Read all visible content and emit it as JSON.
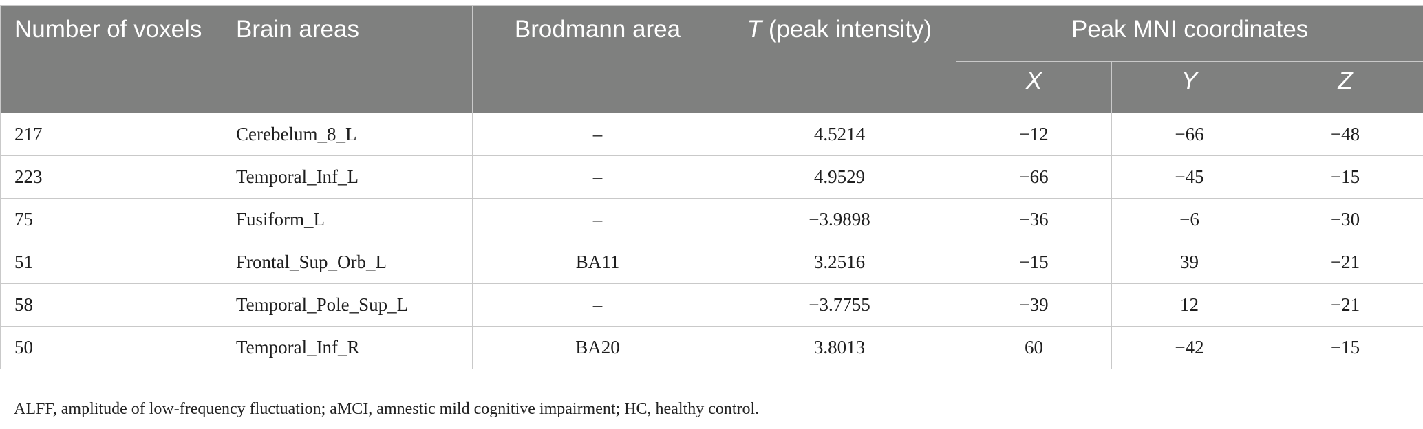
{
  "table": {
    "headers": {
      "number_of_voxels": "Number of voxels",
      "brain_areas": "Brain areas",
      "brodmann_area": "Brodmann area",
      "t_peak_prefix": "T",
      "t_peak_suffix": " (peak intensity)",
      "peak_mni": "Peak MNI coordinates",
      "x": "X",
      "y": "Y",
      "z": "Z"
    },
    "rows": [
      {
        "voxels": "217",
        "area": "Cerebelum_8_L",
        "ba": "–",
        "t": "4.5214",
        "x": "−12",
        "y": "−66",
        "z": "−48"
      },
      {
        "voxels": "223",
        "area": "Temporal_Inf_L",
        "ba": "–",
        "t": "4.9529",
        "x": "−66",
        "y": "−45",
        "z": "−15"
      },
      {
        "voxels": "75",
        "area": "Fusiform_L",
        "ba": "–",
        "t": "−3.9898",
        "x": "−36",
        "y": "−6",
        "z": "−30"
      },
      {
        "voxels": "51",
        "area": "Frontal_Sup_Orb_L",
        "ba": "BA11",
        "t": "3.2516",
        "x": "−15",
        "y": "39",
        "z": "−21"
      },
      {
        "voxels": "58",
        "area": "Temporal_Pole_Sup_L",
        "ba": "–",
        "t": "−3.7755",
        "x": "−39",
        "y": "12",
        "z": "−21"
      },
      {
        "voxels": "50",
        "area": "Temporal_Inf_R",
        "ba": "BA20",
        "t": "3.8013",
        "x": "60",
        "y": "−42",
        "z": "−15"
      }
    ]
  },
  "footnote": "ALFF, amplitude of low-frequency fluctuation; aMCI, amnestic mild cognitive impairment; HC, healthy control."
}
